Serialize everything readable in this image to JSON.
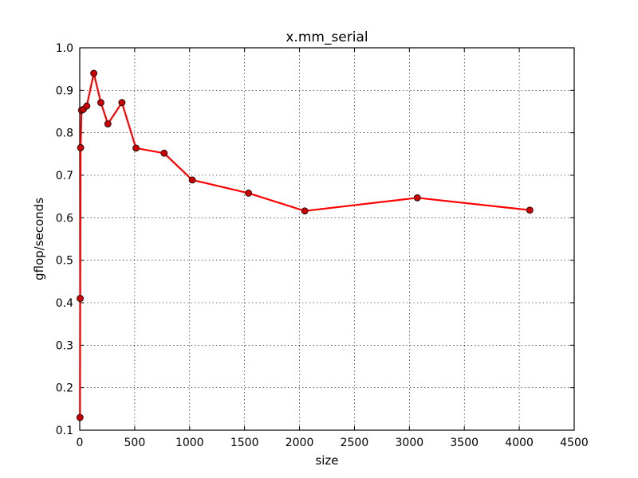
{
  "chart_data": {
    "type": "line",
    "title": "x.mm_serial",
    "xlabel": "size",
    "ylabel": "gflop/seconds",
    "xlim": [
      0,
      4500
    ],
    "ylim": [
      0.1,
      1.0
    ],
    "xticks": [
      0,
      500,
      1000,
      1500,
      2000,
      2500,
      3000,
      3500,
      4000,
      4500
    ],
    "yticks": [
      0.1,
      0.2,
      0.3,
      0.4,
      0.5,
      0.6,
      0.7,
      0.8,
      0.9,
      1.0
    ],
    "xtick_labels": [
      "0",
      "500",
      "1000",
      "1500",
      "2000",
      "2500",
      "3000",
      "3500",
      "4000",
      "4500"
    ],
    "ytick_labels": [
      "0.1",
      "0.2",
      "0.3",
      "0.4",
      "0.5",
      "0.6",
      "0.7",
      "0.8",
      "0.9",
      "1.0"
    ],
    "grid": true,
    "series": [
      {
        "color": "#ff0000",
        "marker_fill": "#cc0000",
        "x": [
          2,
          4,
          8,
          16,
          32,
          64,
          128,
          192,
          256,
          384,
          512,
          768,
          1024,
          1536,
          2048,
          3072,
          4096
        ],
        "y": [
          0.13,
          0.41,
          0.765,
          0.853,
          0.855,
          0.863,
          0.94,
          0.871,
          0.821,
          0.871,
          0.764,
          0.752,
          0.689,
          0.658,
          0.616,
          0.647,
          0.618
        ]
      }
    ]
  }
}
